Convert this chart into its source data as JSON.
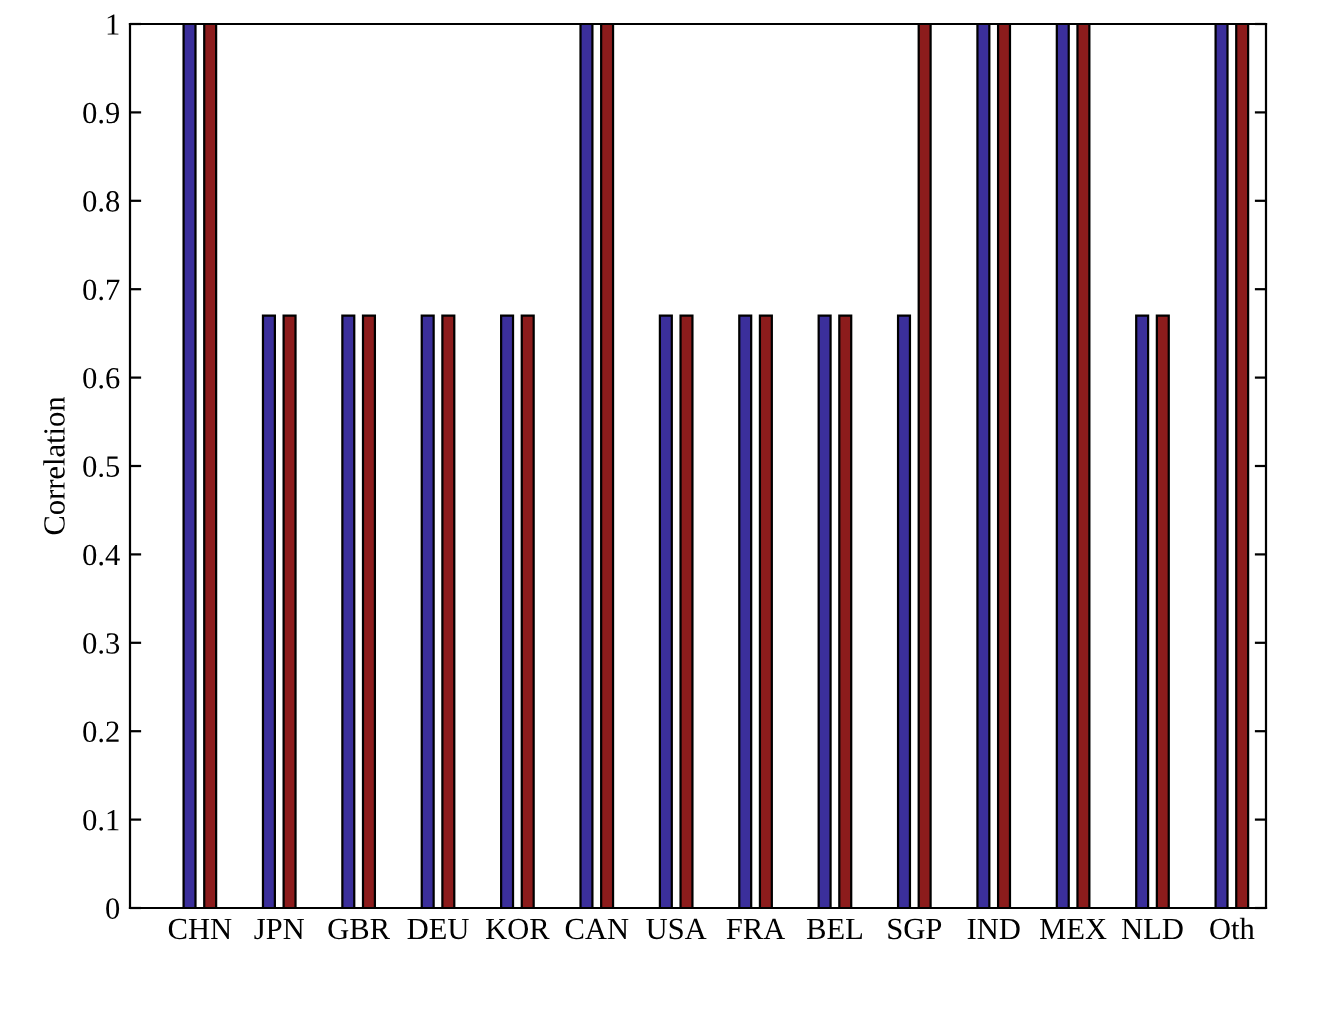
{
  "chart_data": {
    "type": "bar",
    "ylabel": "Correlation",
    "categories": [
      "CHN",
      "JPN",
      "GBR",
      "DEU",
      "KOR",
      "CAN",
      "USA",
      "FRA",
      "BEL",
      "SGP",
      "IND",
      "MEX",
      "NLD",
      "Oth"
    ],
    "series": [
      {
        "color": "#3b2f9b",
        "values": [
          1,
          0.67,
          0.67,
          0.67,
          0.67,
          1,
          0.67,
          0.67,
          0.67,
          0.67,
          1,
          1,
          0.67,
          1
        ]
      },
      {
        "color": "#8c1c1c",
        "values": [
          1,
          0.67,
          0.67,
          0.67,
          0.67,
          1,
          0.67,
          0.67,
          0.67,
          1,
          1,
          1,
          0.67,
          1
        ]
      }
    ],
    "ylim": [
      0,
      1
    ],
    "yticks": [
      0,
      0.1,
      0.2,
      0.3,
      0.4,
      0.5,
      0.6,
      0.7,
      0.8,
      0.9,
      1
    ],
    "grid": false,
    "legend": false
  }
}
